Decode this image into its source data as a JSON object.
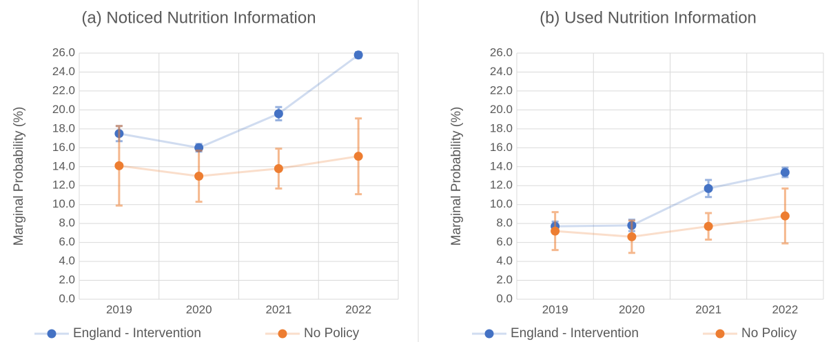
{
  "chart_data": [
    {
      "type": "line",
      "title": "(a) Noticed Nutrition Information",
      "y_label": "Marginal Probability (%)",
      "categories": [
        "2019",
        "2020",
        "2021",
        "2022"
      ],
      "series": [
        {
          "name": "England - Intervention",
          "color": "#4472c4",
          "values": [
            17.5,
            16.0,
            19.6,
            25.8
          ],
          "errors": [
            0.8,
            0.4,
            0.7,
            0.3
          ]
        },
        {
          "name": "No Policy",
          "color": "#ed7d31",
          "values": [
            14.1,
            13.0,
            13.8,
            15.1
          ],
          "errors": [
            4.2,
            2.7,
            2.1,
            4.0
          ]
        }
      ],
      "ylim": [
        0,
        26
      ],
      "yticks": [
        {
          "value": 0,
          "label": "0.0"
        },
        {
          "value": 2,
          "label": "2.0"
        },
        {
          "value": 4,
          "label": "4.0"
        },
        {
          "value": 6,
          "label": "6.0"
        },
        {
          "value": 8,
          "label": "8.0"
        },
        {
          "value": 10,
          "label": "10.0"
        },
        {
          "value": 12,
          "label": "12.0"
        },
        {
          "value": 14,
          "label": "14.0"
        },
        {
          "value": 16,
          "label": "16.0"
        },
        {
          "value": 18,
          "label": "18.0"
        },
        {
          "value": 20,
          "label": "20.0"
        },
        {
          "value": 22,
          "label": "22.0"
        },
        {
          "value": 24,
          "label": "24.0"
        },
        {
          "value": 26,
          "label": "26.0"
        }
      ],
      "grid": true,
      "legend": "bottom"
    },
    {
      "type": "line",
      "title": "(b) Used Nutrition Information",
      "y_label": "Marginal Probability (%)",
      "categories": [
        "2019",
        "2020",
        "2021",
        "2022"
      ],
      "series": [
        {
          "name": "England - Intervention",
          "color": "#4472c4",
          "values": [
            7.7,
            7.8,
            11.7,
            13.4
          ],
          "errors": [
            0.5,
            0.6,
            0.9,
            0.5
          ]
        },
        {
          "name": "No Policy",
          "color": "#ed7d31",
          "values": [
            7.2,
            6.6,
            7.7,
            8.8
          ],
          "errors": [
            2.0,
            1.7,
            1.4,
            2.9
          ]
        }
      ],
      "ylim": [
        0,
        26
      ],
      "yticks": [
        {
          "value": 0,
          "label": "0.0"
        },
        {
          "value": 2,
          "label": "2.0"
        },
        {
          "value": 4,
          "label": "4.0"
        },
        {
          "value": 6,
          "label": "6.0"
        },
        {
          "value": 8,
          "label": "8.0"
        },
        {
          "value": 10,
          "label": "10.0"
        },
        {
          "value": 12,
          "label": "12.0"
        },
        {
          "value": 14,
          "label": "14.0"
        },
        {
          "value": 16,
          "label": "16.0"
        },
        {
          "value": 18,
          "label": "18.0"
        },
        {
          "value": 20,
          "label": "20.0"
        },
        {
          "value": 22,
          "label": "22.0"
        },
        {
          "value": 24,
          "label": "24.0"
        },
        {
          "value": 26,
          "label": "26.0"
        }
      ],
      "grid": true,
      "legend": "bottom"
    }
  ]
}
